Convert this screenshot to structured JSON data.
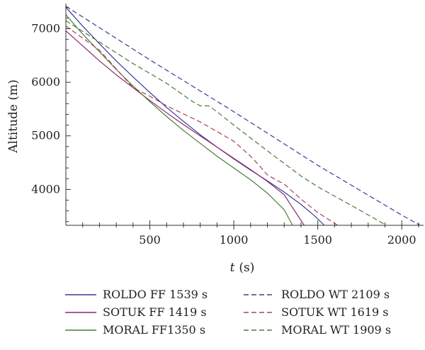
{
  "chart_data": {
    "type": "line",
    "title": "",
    "xlabel_var": "t",
    "xlabel_unit": "(s)",
    "ylabel": "Altitude (m)",
    "xlim": [
      0,
      2130
    ],
    "ylim": [
      3330,
      7470
    ],
    "x_ticks": [
      500,
      1000,
      1500,
      2000
    ],
    "y_ticks": [
      4000,
      5000,
      6000,
      7000
    ],
    "grid": false,
    "legend_placement": "bottom",
    "series": [
      {
        "name": "ROLDO FF 1539 s",
        "color": "#3a3a9a",
        "dash": "solid",
        "points": [
          [
            0,
            7400
          ],
          [
            100,
            7050
          ],
          [
            200,
            6720
          ],
          [
            300,
            6400
          ],
          [
            400,
            6100
          ],
          [
            500,
            5810
          ],
          [
            600,
            5530
          ],
          [
            700,
            5270
          ],
          [
            800,
            5020
          ],
          [
            900,
            4790
          ],
          [
            1000,
            4570
          ],
          [
            1100,
            4360
          ],
          [
            1200,
            4160
          ],
          [
            1300,
            3950
          ],
          [
            1400,
            3720
          ],
          [
            1480,
            3510
          ],
          [
            1539,
            3330
          ]
        ]
      },
      {
        "name": "SOTUK FF 1419 s",
        "color": "#8a2a6a",
        "dash": "solid",
        "points": [
          [
            0,
            6960
          ],
          [
            100,
            6680
          ],
          [
            200,
            6400
          ],
          [
            300,
            6140
          ],
          [
            400,
            5900
          ],
          [
            500,
            5660
          ],
          [
            600,
            5430
          ],
          [
            700,
            5210
          ],
          [
            800,
            5000
          ],
          [
            900,
            4790
          ],
          [
            1000,
            4580
          ],
          [
            1100,
            4370
          ],
          [
            1200,
            4150
          ],
          [
            1300,
            3900
          ],
          [
            1419,
            3330
          ]
        ]
      },
      {
        "name": "MORAL FF1350 s",
        "color": "#4a7a3a",
        "dash": "solid",
        "points": [
          [
            0,
            7260
          ],
          [
            100,
            6900
          ],
          [
            200,
            6570
          ],
          [
            300,
            6240
          ],
          [
            400,
            5930
          ],
          [
            500,
            5640
          ],
          [
            600,
            5360
          ],
          [
            700,
            5100
          ],
          [
            800,
            4860
          ],
          [
            900,
            4620
          ],
          [
            1000,
            4400
          ],
          [
            1100,
            4180
          ],
          [
            1200,
            3930
          ],
          [
            1300,
            3620
          ],
          [
            1350,
            3330
          ]
        ]
      },
      {
        "name": "ROLDO WT 2109 s",
        "color": "#3a3a9a",
        "dash": "dashed",
        "points": [
          [
            0,
            7420
          ],
          [
            500,
            6420
          ],
          [
            1000,
            5450
          ],
          [
            1500,
            4450
          ],
          [
            2000,
            3520
          ],
          [
            2109,
            3330
          ]
        ]
      },
      {
        "name": "SOTUK WT 1619 s",
        "color": "#a8405a",
        "dash": "dashed",
        "points": [
          [
            0,
            7050
          ],
          [
            200,
            6600
          ],
          [
            400,
            5900
          ],
          [
            500,
            5740
          ],
          [
            600,
            5560
          ],
          [
            800,
            5260
          ],
          [
            1000,
            4900
          ],
          [
            1100,
            4620
          ],
          [
            1150,
            4450
          ],
          [
            1200,
            4270
          ],
          [
            1250,
            4180
          ],
          [
            1300,
            4100
          ],
          [
            1400,
            3820
          ],
          [
            1500,
            3570
          ],
          [
            1619,
            3330
          ]
        ]
      },
      {
        "name": "MORAL WT 1909 s",
        "color": "#4a7a3a",
        "dash": "dashed",
        "points": [
          [
            0,
            7150
          ],
          [
            200,
            6750
          ],
          [
            400,
            6350
          ],
          [
            600,
            5980
          ],
          [
            750,
            5650
          ],
          [
            800,
            5560
          ],
          [
            850,
            5560
          ],
          [
            900,
            5450
          ],
          [
            1000,
            5200
          ],
          [
            1200,
            4720
          ],
          [
            1400,
            4250
          ],
          [
            1500,
            4050
          ],
          [
            1700,
            3700
          ],
          [
            1909,
            3330
          ]
        ]
      }
    ]
  }
}
